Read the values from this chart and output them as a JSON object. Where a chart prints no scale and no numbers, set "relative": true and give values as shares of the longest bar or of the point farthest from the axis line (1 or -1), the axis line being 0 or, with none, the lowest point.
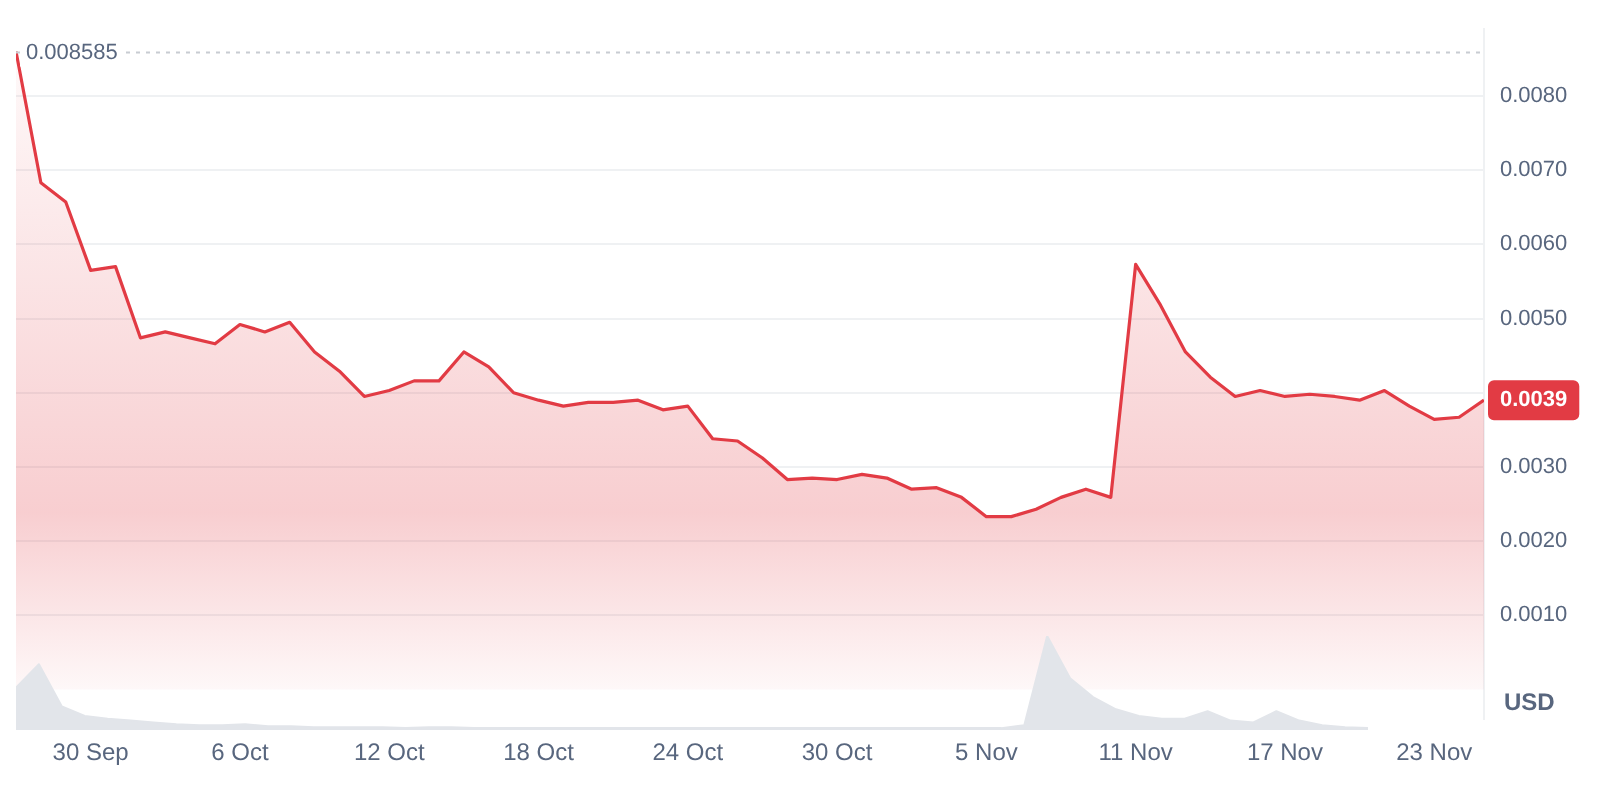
{
  "chart_data": [
    {
      "type": "area",
      "ylabel": "USD",
      "color": "#e23b44",
      "x": [
        "--09-27",
        "--09-28",
        "--09-29",
        "--09-30",
        "--10-01",
        "--10-02",
        "--10-03",
        "--10-04",
        "--10-05",
        "--10-06",
        "--10-07",
        "--10-08",
        "--10-09",
        "--10-10",
        "--10-11",
        "--10-12",
        "--10-13",
        "--10-14",
        "--10-15",
        "--10-16",
        "--10-17",
        "--10-18",
        "--10-19",
        "--10-20",
        "--10-21",
        "--10-22",
        "--10-23",
        "--10-24",
        "--10-25",
        "--10-26",
        "--10-27",
        "--10-28",
        "--10-29",
        "--10-30",
        "--10-31",
        "--11-01",
        "--11-02",
        "--11-03",
        "--11-04",
        "--11-05",
        "--11-06",
        "--11-07",
        "--11-08",
        "--11-09",
        "--11-10",
        "--11-11",
        "--11-12",
        "--11-13",
        "--11-14",
        "--11-15",
        "--11-16",
        "--11-17",
        "--11-18",
        "--11-19",
        "--11-20",
        "--11-21",
        "--11-22",
        "--11-23",
        "--11-24",
        "--11-25"
      ],
      "values": [
        0.0086,
        0.00683,
        0.00657,
        0.00565,
        0.0057,
        0.00474,
        0.00482,
        0.00474,
        0.00466,
        0.00492,
        0.00482,
        0.00495,
        0.00455,
        0.00429,
        0.00395,
        0.00403,
        0.00416,
        0.00416,
        0.00455,
        0.00435,
        0.004,
        0.0039,
        0.00382,
        0.00387,
        0.00387,
        0.0039,
        0.00377,
        0.00382,
        0.00338,
        0.00335,
        0.00312,
        0.00283,
        0.00285,
        0.00283,
        0.0029,
        0.00285,
        0.0027,
        0.00272,
        0.00259,
        0.00233,
        0.00233,
        0.00243,
        0.00259,
        0.0027,
        0.00259,
        0.00573,
        0.00518,
        0.00455,
        0.00421,
        0.00395,
        0.00403,
        0.00395,
        0.00398,
        0.00395,
        0.0039,
        0.00403,
        0.00382,
        0.00364,
        0.00367,
        0.0039
      ],
      "value_labels": [
        null,
        null,
        null,
        null,
        null,
        null,
        null,
        null,
        null,
        null,
        null,
        null,
        null,
        null,
        null,
        null,
        null,
        null,
        null,
        null,
        null,
        null,
        null,
        null,
        null,
        null,
        null,
        null,
        null,
        null,
        null,
        null,
        null,
        null,
        null,
        null,
        null,
        null,
        null,
        null,
        null,
        null,
        null,
        null,
        null,
        null,
        null,
        null,
        null,
        null,
        null,
        null,
        null,
        null,
        null,
        null,
        null,
        null,
        null,
        "0.0039"
      ],
      "xlim": [
        "--09-27",
        "--11-25"
      ],
      "xticks": [
        {
          "value": "--09-30",
          "label": "30 Sep"
        },
        {
          "value": "--10-06",
          "label": "6 Oct"
        },
        {
          "value": "--10-12",
          "label": "12 Oct"
        },
        {
          "value": "--10-18",
          "label": "18 Oct"
        },
        {
          "value": "--10-24",
          "label": "24 Oct"
        },
        {
          "value": "--10-30",
          "label": "30 Oct"
        },
        {
          "value": "--11-05",
          "label": "5 Nov"
        },
        {
          "value": "--11-11",
          "label": "11 Nov"
        },
        {
          "value": "--11-17",
          "label": "17 Nov"
        },
        {
          "value": "--11-23",
          "label": "23 Nov"
        }
      ],
      "ylim": [
        -0.0004,
        0.0089
      ],
      "yticks": [
        {
          "value": 0.001,
          "label": "0.0010"
        },
        {
          "value": 0.002,
          "label": "0.0020"
        },
        {
          "value": 0.003,
          "label": "0.0030"
        },
        {
          "value": 0.004,
          "label": null
        },
        {
          "value": 0.005,
          "label": "0.0050"
        },
        {
          "value": 0.006,
          "label": "0.0060"
        },
        {
          "value": 0.007,
          "label": "0.0070"
        },
        {
          "value": 0.008,
          "label": "0.0080"
        }
      ],
      "ref_lines": [
        {
          "axis": "y",
          "value": 0.008585,
          "label": "0.008585",
          "color": "#c8ccd2",
          "line_style": "dotted"
        }
      ],
      "grid": "y",
      "legend": false
    },
    {
      "type": "area",
      "relative": true,
      "color": "#e2e5ea",
      "categories": [
        null,
        null,
        null,
        null,
        null,
        null,
        null,
        null,
        null,
        null,
        null,
        null,
        null,
        null,
        null,
        null,
        null,
        null,
        null,
        null,
        null,
        null,
        null,
        null,
        null,
        null,
        null,
        null,
        null,
        null,
        null,
        null,
        null,
        null,
        null,
        null,
        null,
        null,
        null,
        null,
        null,
        null,
        null,
        null,
        null,
        null,
        null,
        null,
        null,
        null,
        null,
        null,
        null,
        null,
        null,
        null,
        null,
        null,
        null,
        null
      ],
      "values": [
        0.45,
        0.7,
        0.25,
        0.15,
        0.12,
        0.1,
        0.08,
        0.06,
        0.05,
        0.05,
        0.06,
        0.04,
        0.04,
        0.03,
        0.03,
        0.03,
        0.03,
        0.02,
        0.03,
        0.03,
        0.02,
        0.02,
        0.02,
        0.02,
        0.02,
        0.02,
        0.02,
        0.02,
        0.02,
        0.02,
        0.02,
        0.02,
        0.02,
        0.02,
        0.02,
        0.02,
        0.02,
        0.02,
        0.02,
        0.02,
        0.02,
        0.02,
        0.02,
        0.02,
        0.05,
        1,
        0.55,
        0.35,
        0.22,
        0.15,
        0.12,
        0.12,
        0.2,
        0.1,
        0.08,
        0.2,
        0.1,
        0.05,
        0.03,
        0.02
      ],
      "legend": false
    }
  ]
}
